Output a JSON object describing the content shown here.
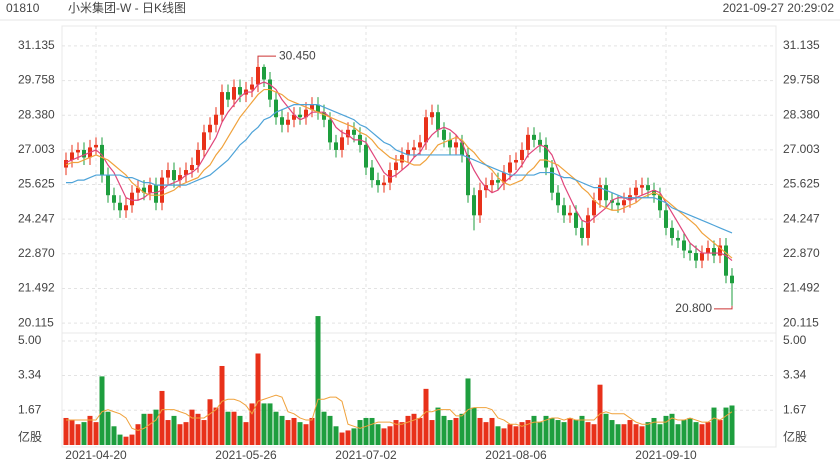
{
  "header": {
    "code": "01810",
    "title": "小米集团-W - 日K线图",
    "time": "2021-09-27 20:29:02"
  },
  "chart_data": {
    "type": "candlestick",
    "categories": [
      null,
      null,
      null,
      null,
      null,
      "2021-04-20",
      null,
      null,
      null,
      null,
      null,
      null,
      null,
      null,
      null,
      null,
      null,
      null,
      null,
      null,
      null,
      null,
      null,
      null,
      null,
      null,
      null,
      null,
      null,
      null,
      "2021-05-26",
      null,
      null,
      null,
      null,
      null,
      null,
      null,
      null,
      null,
      null,
      null,
      null,
      null,
      null,
      null,
      null,
      null,
      null,
      null,
      "2021-07-02",
      null,
      null,
      null,
      null,
      null,
      null,
      null,
      null,
      null,
      null,
      null,
      null,
      null,
      null,
      null,
      null,
      null,
      null,
      null,
      null,
      null,
      null,
      null,
      null,
      "2021-08-06",
      null,
      null,
      null,
      null,
      null,
      null,
      null,
      null,
      null,
      null,
      null,
      null,
      null,
      null,
      null,
      null,
      null,
      null,
      null,
      null,
      null,
      null,
      null,
      null,
      "2021-09-10",
      null,
      null,
      null,
      null,
      null,
      null,
      null,
      null,
      null,
      null,
      null
    ],
    "open": [
      26.3,
      26.6,
      26.9,
      27.0,
      26.7,
      27.1,
      27.2,
      26.0,
      25.2,
      24.9,
      24.6,
      24.8,
      25.3,
      25.5,
      25.3,
      25.6,
      24.9,
      25.9,
      26.2,
      25.8,
      26.0,
      26.2,
      26.4,
      27.0,
      27.7,
      28.0,
      28.4,
      29.3,
      29.0,
      29.5,
      29.2,
      29.4,
      29.6,
      30.3,
      29.8,
      29.0,
      28.3,
      28.0,
      28.2,
      28.4,
      28.3,
      28.6,
      28.8,
      28.5,
      28.2,
      27.3,
      27.0,
      27.5,
      27.8,
      27.6,
      27.2,
      26.3,
      25.8,
      25.6,
      25.7,
      26.2,
      26.5,
      26.8,
      27.0,
      27.1,
      27.3,
      28.3,
      28.5,
      27.8,
      27.4,
      27.1,
      27.3,
      26.8,
      25.2,
      24.4,
      25.4,
      25.6,
      25.8,
      25.7,
      26.1,
      26.5,
      26.6,
      27.0,
      27.6,
      27.4,
      27.2,
      26.3,
      25.3,
      24.8,
      24.4,
      24.5,
      23.9,
      23.5,
      24.4,
      25.0,
      25.6,
      25.0,
      24.9,
      24.8,
      25.0,
      25.2,
      25.5,
      25.6,
      25.4,
      25.2,
      24.6,
      23.9,
      23.5,
      23.4,
      23.0,
      22.9,
      22.6,
      22.9,
      23.1,
      22.8,
      23.2,
      22.0
    ],
    "high": [
      26.9,
      27.2,
      27.3,
      27.3,
      27.4,
      27.5,
      27.5,
      26.3,
      25.5,
      25.2,
      25.1,
      25.6,
      25.8,
      25.8,
      25.9,
      25.9,
      26.2,
      26.5,
      26.5,
      26.3,
      26.5,
      26.7,
      27.3,
      28.0,
      28.3,
      28.7,
      29.6,
      29.6,
      29.8,
      29.8,
      29.7,
      29.9,
      30.45,
      30.4,
      30.1,
      29.3,
      28.6,
      28.5,
      28.7,
      28.7,
      28.9,
      29.1,
      29.1,
      28.8,
      28.5,
      27.6,
      27.8,
      28.1,
      28.1,
      27.9,
      27.5,
      26.6,
      26.1,
      26.0,
      26.5,
      26.8,
      27.1,
      27.3,
      27.4,
      27.6,
      28.6,
      28.8,
      28.8,
      28.1,
      27.7,
      27.6,
      27.6,
      27.1,
      25.5,
      25.7,
      25.9,
      26.1,
      26.1,
      26.4,
      26.8,
      26.9,
      27.3,
      27.9,
      27.9,
      27.7,
      27.5,
      26.6,
      25.6,
      25.1,
      24.8,
      24.8,
      24.2,
      24.7,
      25.3,
      25.9,
      25.9,
      25.3,
      25.2,
      25.3,
      25.5,
      25.8,
      25.9,
      25.9,
      25.7,
      25.5,
      24.9,
      24.2,
      23.8,
      23.7,
      23.3,
      23.2,
      23.2,
      23.4,
      23.4,
      23.5,
      23.5,
      22.3
    ],
    "low": [
      26.0,
      26.3,
      26.6,
      26.4,
      26.4,
      26.8,
      25.7,
      24.9,
      24.6,
      24.3,
      24.3,
      24.5,
      25.0,
      25.0,
      25.0,
      24.6,
      24.6,
      25.6,
      25.5,
      25.5,
      25.7,
      25.9,
      26.1,
      26.7,
      27.4,
      27.7,
      28.1,
      28.7,
      28.7,
      28.9,
      28.9,
      29.1,
      29.3,
      29.5,
      28.7,
      28.0,
      27.7,
      27.7,
      27.9,
      28.0,
      28.0,
      28.3,
      28.2,
      27.9,
      27.0,
      26.7,
      26.7,
      27.2,
      27.3,
      26.9,
      26.0,
      25.5,
      25.3,
      25.3,
      25.4,
      25.9,
      26.2,
      26.5,
      26.7,
      26.8,
      27.0,
      28.0,
      27.5,
      27.1,
      26.8,
      26.8,
      26.5,
      24.9,
      23.8,
      24.1,
      25.1,
      25.3,
      25.4,
      25.4,
      25.8,
      26.2,
      26.3,
      26.7,
      27.1,
      26.9,
      26.0,
      25.0,
      24.5,
      24.1,
      24.1,
      23.6,
      23.2,
      23.2,
      24.1,
      24.7,
      24.7,
      24.6,
      24.5,
      24.5,
      24.7,
      24.9,
      25.2,
      25.1,
      24.9,
      24.3,
      23.6,
      23.2,
      23.1,
      22.7,
      22.6,
      22.3,
      22.3,
      22.6,
      22.5,
      22.5,
      21.7,
      20.8
    ],
    "close": [
      26.6,
      26.9,
      27.0,
      26.7,
      27.1,
      27.2,
      26.0,
      25.2,
      24.9,
      24.6,
      24.8,
      25.3,
      25.5,
      25.3,
      25.6,
      24.9,
      25.9,
      26.2,
      25.8,
      26.0,
      26.2,
      26.4,
      27.0,
      27.7,
      28.0,
      28.4,
      29.3,
      29.0,
      29.5,
      29.2,
      29.4,
      29.6,
      30.3,
      29.8,
      29.0,
      28.3,
      28.0,
      28.2,
      28.4,
      28.3,
      28.6,
      28.8,
      28.5,
      28.2,
      27.3,
      27.0,
      27.5,
      27.8,
      27.6,
      27.2,
      26.3,
      25.8,
      25.6,
      25.7,
      26.2,
      26.5,
      26.8,
      27.0,
      27.1,
      27.3,
      28.3,
      28.5,
      27.8,
      27.4,
      27.1,
      27.3,
      26.8,
      25.2,
      24.4,
      25.4,
      25.6,
      25.8,
      25.7,
      26.1,
      26.5,
      26.6,
      27.0,
      27.6,
      27.4,
      27.2,
      26.3,
      25.3,
      24.8,
      24.4,
      24.5,
      23.9,
      23.5,
      24.4,
      25.0,
      25.6,
      25.0,
      24.9,
      24.8,
      25.0,
      25.2,
      25.5,
      25.6,
      25.4,
      25.2,
      24.6,
      23.9,
      23.5,
      23.4,
      23.0,
      22.9,
      22.6,
      22.9,
      23.1,
      22.8,
      23.2,
      22.0,
      21.7
    ],
    "ylim": [
      19.84,
      31.53
    ],
    "yticks": [
      20.115,
      21.492,
      {
        "value": 22.87,
        "label": "22.870"
      },
      24.247,
      25.625,
      27.003,
      {
        "value": 28.38,
        "label": "28.380"
      },
      29.758,
      31.135
    ],
    "grid": true,
    "up_color": "#e8311a",
    "down_color": "#1e9e3e",
    "lines": [
      {
        "color": "#e0457b",
        "values": [
          26.5,
          26.6,
          26.7,
          26.8,
          26.9,
          27.0,
          26.8,
          26.4,
          26.1,
          25.6,
          25.1,
          25.0,
          25.0,
          25.1,
          25.3,
          25.3,
          25.4,
          25.6,
          25.7,
          25.8,
          26.0,
          26.1,
          26.3,
          26.7,
          27.1,
          27.5,
          28.1,
          28.5,
          28.8,
          29.1,
          29.3,
          29.3,
          29.6,
          29.7,
          29.6,
          29.4,
          29.0,
          28.7,
          28.4,
          28.2,
          28.3,
          28.5,
          28.5,
          28.5,
          28.3,
          27.9,
          27.7,
          27.6,
          27.4,
          27.4,
          27.3,
          26.9,
          26.5,
          26.1,
          25.9,
          26.0,
          26.2,
          26.4,
          26.7,
          26.9,
          27.3,
          27.6,
          27.8,
          27.9,
          27.8,
          27.6,
          27.3,
          26.7,
          26.2,
          25.8,
          25.5,
          25.3,
          25.4,
          25.7,
          25.9,
          26.1,
          26.4,
          26.8,
          27.0,
          27.2,
          27.1,
          26.8,
          26.2,
          25.6,
          25.1,
          24.6,
          24.2,
          24.1,
          24.3,
          24.5,
          24.7,
          25.0,
          25.1,
          25.1,
          25.0,
          25.1,
          25.2,
          25.3,
          25.4,
          25.3,
          24.9,
          24.5,
          24.1,
          23.7,
          23.3,
          23.1,
          22.9,
          22.9,
          22.9,
          22.9,
          22.8,
          22.6
        ]
      },
      {
        "color": "#f0a23c",
        "values": [
          26.4,
          26.5,
          26.5,
          26.6,
          26.7,
          26.8,
          26.7,
          26.6,
          26.4,
          26.2,
          26.0,
          25.7,
          25.5,
          25.3,
          25.2,
          25.2,
          25.2,
          25.3,
          25.4,
          25.6,
          25.7,
          25.8,
          25.9,
          26.2,
          26.4,
          26.8,
          27.1,
          27.5,
          27.9,
          28.3,
          28.6,
          28.9,
          29.2,
          29.4,
          29.4,
          29.3,
          29.2,
          29.0,
          28.9,
          28.8,
          28.7,
          28.6,
          28.5,
          28.4,
          28.3,
          28.2,
          28.1,
          28.0,
          27.9,
          27.7,
          27.6,
          27.4,
          27.1,
          26.9,
          26.7,
          26.6,
          26.6,
          26.5,
          26.4,
          26.4,
          26.6,
          26.9,
          27.2,
          27.3,
          27.4,
          27.5,
          27.4,
          27.1,
          26.9,
          26.6,
          26.4,
          26.2,
          25.9,
          25.7,
          25.6,
          25.7,
          25.8,
          26.1,
          26.3,
          26.6,
          26.6,
          26.5,
          26.4,
          26.2,
          26.0,
          25.8,
          25.5,
          25.3,
          25.0,
          24.8,
          24.7,
          24.6,
          24.6,
          24.7,
          24.8,
          24.9,
          25.1,
          25.2,
          25.3,
          25.2,
          25.0,
          24.8,
          24.6,
          24.4,
          24.2,
          24.0,
          23.7,
          23.5,
          23.3,
          23.1,
          22.9,
          22.7
        ]
      },
      {
        "color": "#4ea3d8",
        "values": [
          25.7,
          25.7,
          25.8,
          25.8,
          25.9,
          26.0,
          26.0,
          26.0,
          26.0,
          26.0,
          25.9,
          25.9,
          25.8,
          25.7,
          25.7,
          25.6,
          25.6,
          25.6,
          25.6,
          25.6,
          25.6,
          25.7,
          25.8,
          25.9,
          26.0,
          26.2,
          26.4,
          26.6,
          26.9,
          27.2,
          27.4,
          27.7,
          27.9,
          28.2,
          28.3,
          28.5,
          28.6,
          28.7,
          28.8,
          28.8,
          28.8,
          28.8,
          28.8,
          28.7,
          28.6,
          28.5,
          28.4,
          28.3,
          28.2,
          28.0,
          27.9,
          27.7,
          27.5,
          27.3,
          27.2,
          27.0,
          26.9,
          26.8,
          26.8,
          26.8,
          26.8,
          26.8,
          26.8,
          26.8,
          26.8,
          26.8,
          26.8,
          26.7,
          26.6,
          26.5,
          26.4,
          26.3,
          26.2,
          26.1,
          26.0,
          26.0,
          26.0,
          26.0,
          26.0,
          26.1,
          26.1,
          26.1,
          26.0,
          25.9,
          25.9,
          25.8,
          25.7,
          25.6,
          25.5,
          25.5,
          25.4,
          25.3,
          25.2,
          25.1,
          25.1,
          25.1,
          25.1,
          25.1,
          25.1,
          25.0,
          24.9,
          24.7,
          24.6,
          24.5,
          24.4,
          24.3,
          24.2,
          24.1,
          24.0,
          23.9,
          23.8,
          23.7
        ]
      }
    ],
    "annotations": [
      {
        "value": 30.45,
        "label": "30.450"
      },
      {
        "value": 20.8,
        "label": "20.800"
      }
    ],
    "volume": {
      "unit": "亿股",
      "ylim": [
        0,
        5.29
      ],
      "yticks": [
        {
          "value": 1.67,
          "label": "1.67"
        },
        {
          "value": 3.34,
          "label": "3.34"
        },
        {
          "value": 5,
          "label": "5.00"
        }
      ],
      "values": [
        1.3,
        1.2,
        1.0,
        1.1,
        1.4,
        1.1,
        3.3,
        1.6,
        0.9,
        0.5,
        0.4,
        0.5,
        1.0,
        1.5,
        1.5,
        1.7,
        2.6,
        1.2,
        1.4,
        1.0,
        1.1,
        1.7,
        1.5,
        1.2,
        2.2,
        1.8,
        3.8,
        1.6,
        1.6,
        1.4,
        1.1,
        2.0,
        4.4,
        2.0,
        2.0,
        1.6,
        1.4,
        1.2,
        1.3,
        1.1,
        1.0,
        1.3,
        6.2,
        1.6,
        1.4,
        0.9,
        0.6,
        0.7,
        0.8,
        1.2,
        1.3,
        1.3,
        1.0,
        0.8,
        0.9,
        1.2,
        1.1,
        1.4,
        1.5,
        1.3,
        2.7,
        1.2,
        1.8,
        1.4,
        1.2,
        1.3,
        1.5,
        3.2,
        1.8,
        1.3,
        1.1,
        1.3,
        0.9,
        0.8,
        1.0,
        0.9,
        1.1,
        1.2,
        1.4,
        1.1,
        1.4,
        1.3,
        1.2,
        1.1,
        1.3,
        1.2,
        1.4,
        1.1,
        1.0,
        2.9,
        1.5,
        1.2,
        1.0,
        1.0,
        1.2,
        1.0,
        0.9,
        1.1,
        1.3,
        1.0,
        1.4,
        1.5,
        1.0,
        1.2,
        1.3,
        1.1,
        1.0,
        1.1,
        1.8,
        1.2,
        1.8,
        1.9
      ],
      "line": {
        "color": "#f0a23c",
        "values": [
          1.2,
          1.2,
          1.2,
          1.2,
          1.2,
          1.2,
          1.6,
          1.7,
          1.6,
          1.5,
          1.3,
          0.8,
          0.7,
          0.8,
          1.0,
          1.2,
          1.7,
          1.7,
          1.7,
          1.6,
          1.5,
          1.3,
          1.3,
          1.3,
          1.5,
          1.7,
          2.1,
          2.2,
          2.2,
          2.1,
          1.9,
          1.5,
          2.1,
          2.2,
          2.3,
          2.4,
          2.3,
          1.6,
          1.5,
          1.3,
          1.2,
          1.2,
          2.2,
          2.2,
          2.3,
          2.3,
          2.1,
          1.0,
          0.9,
          0.8,
          0.9,
          1.0,
          1.1,
          1.1,
          1.1,
          1.0,
          1.0,
          1.1,
          1.2,
          1.3,
          1.6,
          1.6,
          1.7,
          1.7,
          1.7,
          1.4,
          1.4,
          1.7,
          1.8,
          1.8,
          1.8,
          1.7,
          1.3,
          1.2,
          1.0,
          1.0,
          0.9,
          1.0,
          1.1,
          1.1,
          1.2,
          1.3,
          1.3,
          1.2,
          1.3,
          1.2,
          1.2,
          1.2,
          1.2,
          1.5,
          1.6,
          1.5,
          1.5,
          1.5,
          1.3,
          1.1,
          1.0,
          1.0,
          1.1,
          1.1,
          1.1,
          1.3,
          1.2,
          1.2,
          1.3,
          1.2,
          1.1,
          1.1,
          1.3,
          1.2,
          1.4,
          1.6
        ]
      }
    }
  }
}
